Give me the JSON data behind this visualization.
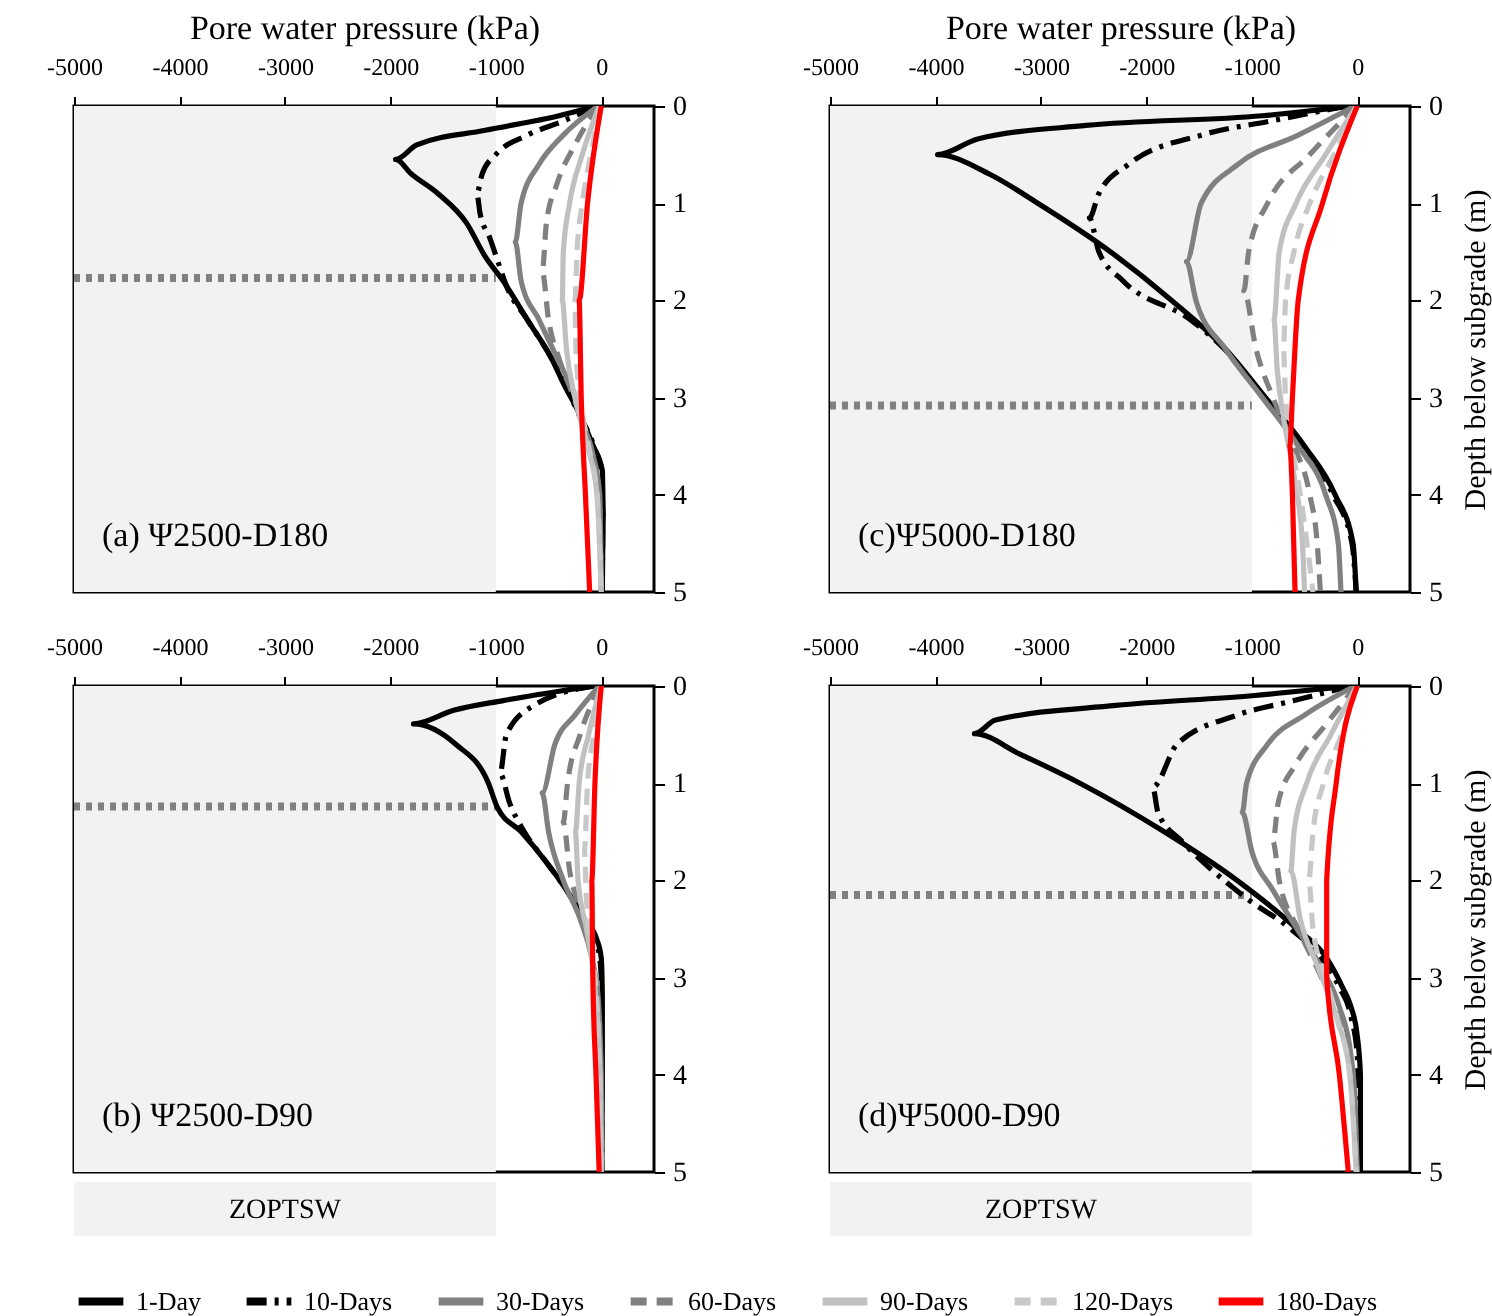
{
  "chart_data": [
    {
      "type": "line",
      "xlabel": "Pore water pressure (kPa)",
      "xlim": [
        -5000,
        500
      ],
      "xticks": [
        -5000,
        -4000,
        -3000,
        -2000,
        -1000,
        0
      ],
      "ylim": [
        5,
        0
      ],
      "yticks": [
        0,
        1,
        2,
        3,
        4,
        5
      ],
      "legend": "bottom",
      "annotations": [
        "(a) Ψ2500-D180"
      ],
      "bands": [
        {
          "axis": "x",
          "from": -5000,
          "to": -1000,
          "label": null,
          "color": "#f2f2f2"
        }
      ],
      "ref_lines": [
        {
          "axis": "y",
          "value": 1.77,
          "label": null,
          "color": "#808080",
          "line_style": "dotted"
        }
      ],
      "series": [
        {
          "name": "1-Day",
          "color": "#000000",
          "line_style": "solid",
          "x": [
            -50,
            -400,
            -1100,
            -1750,
            -1950,
            -1800,
            -1550,
            -1280,
            -1100,
            -930,
            -700,
            -470,
            -360,
            -215,
            -75,
            10,
            20,
            10
          ],
          "values": [
            0,
            0.1,
            0.25,
            0.4,
            0.55,
            0.7,
            0.9,
            1.2,
            1.55,
            1.8,
            2.2,
            2.6,
            2.85,
            3.15,
            3.5,
            3.75,
            4.2,
            5
          ]
        },
        {
          "name": "10-Days",
          "color": "#000000",
          "line_style": "dashdot",
          "x": [
            -60,
            -350,
            -700,
            -1000,
            -1130,
            -1180,
            -1150,
            -1060,
            -980,
            -900,
            -700,
            -470,
            -330,
            -200,
            -70,
            0,
            15,
            10
          ],
          "values": [
            0,
            0.15,
            0.3,
            0.5,
            0.7,
            0.9,
            1.1,
            1.35,
            1.6,
            1.85,
            2.2,
            2.6,
            2.9,
            3.2,
            3.5,
            3.8,
            4.3,
            5
          ]
        },
        {
          "name": "30-Days",
          "color": "#808080",
          "line_style": "solid",
          "x": [
            -30,
            -360,
            -590,
            -760,
            -815,
            -760,
            -590,
            -415,
            -245,
            -160,
            -75,
            -15,
            0
          ],
          "values": [
            0,
            0.3,
            0.6,
            1.0,
            1.4,
            1.8,
            2.2,
            2.6,
            3.0,
            3.3,
            3.6,
            4.0,
            5
          ]
        },
        {
          "name": "60-Days",
          "color": "#808080",
          "line_style": "dashed",
          "x": [
            -30,
            -250,
            -420,
            -520,
            -560,
            -500,
            -400,
            -260,
            -140,
            -50,
            -10,
            0
          ],
          "values": [
            0,
            0.4,
            0.8,
            1.2,
            1.7,
            2.2,
            2.6,
            3.0,
            3.4,
            3.8,
            4.3,
            5
          ]
        },
        {
          "name": "90-Days",
          "color": "#c0c0c0",
          "line_style": "solid",
          "x": [
            -20,
            -180,
            -300,
            -360,
            -370,
            -330,
            -250,
            -130,
            -40,
            0
          ],
          "values": [
            0,
            0.5,
            1,
            1.5,
            2,
            2.5,
            3,
            3.5,
            4,
            5
          ]
        },
        {
          "name": "120-Days",
          "color": "#c8c8c8",
          "line_style": "dashed",
          "x": [
            -10,
            -100,
            -180,
            -230,
            -250,
            -240,
            -200,
            -120,
            -40,
            0
          ],
          "values": [
            0,
            0.5,
            1,
            1.5,
            2,
            2.5,
            3,
            3.5,
            4,
            5
          ]
        },
        {
          "name": "180-Days",
          "color": "#ff0000",
          "line_style": "solid",
          "x": [
            0,
            -130,
            -210,
            -190,
            -150,
            -110
          ],
          "values": [
            0,
            1,
            2,
            3,
            4,
            5
          ]
        }
      ]
    },
    {
      "type": "line",
      "xlabel": "Pore water pressure (kPa)",
      "ylabel": "Depth below subgrade (m)",
      "xlim": [
        -5000,
        500
      ],
      "xticks": [
        -5000,
        -4000,
        -3000,
        -2000,
        -1000,
        0
      ],
      "ylim": [
        5,
        0
      ],
      "yticks": [
        0,
        1,
        2,
        3,
        4,
        5
      ],
      "legend": "bottom",
      "annotations": [
        "(c)Ψ5000-D180"
      ],
      "bands": [
        {
          "axis": "x",
          "from": -5000,
          "to": -1000,
          "label": null,
          "color": "#f2f2f2"
        }
      ],
      "ref_lines": [
        {
          "axis": "y",
          "value": 3.08,
          "label": null,
          "color": "#808080",
          "line_style": "dotted"
        }
      ],
      "series": [
        {
          "name": "1-Day",
          "color": "#000000",
          "line_style": "solid",
          "x": [
            -40,
            -900,
            -2570,
            -3600,
            -3980,
            -3490,
            -3030,
            -2340,
            -1760,
            -1250,
            -870,
            -500,
            -210,
            -40,
            -10
          ],
          "values": [
            0,
            0.1,
            0.2,
            0.34,
            0.5,
            0.7,
            1.0,
            1.5,
            2.0,
            2.5,
            3.0,
            3.5,
            4.0,
            4.5,
            5
          ]
        },
        {
          "name": "10-Days",
          "color": "#000000",
          "line_style": "dashdot",
          "x": [
            -100,
            -800,
            -1480,
            -2170,
            -2450,
            -2540,
            -2450,
            -2220,
            -1580,
            -1260,
            -880,
            -520,
            -230,
            -50,
            -10
          ],
          "values": [
            0,
            0.15,
            0.3,
            0.6,
            0.9,
            1.15,
            1.5,
            1.8,
            2.2,
            2.5,
            3.0,
            3.5,
            4.0,
            4.5,
            5
          ]
        },
        {
          "name": "30-Days",
          "color": "#808080",
          "line_style": "solid",
          "x": [
            -20,
            -560,
            -1130,
            -1480,
            -1620,
            -1530,
            -1250,
            -900,
            -560,
            -300,
            -180,
            -155
          ],
          "values": [
            0,
            0.3,
            0.6,
            1.0,
            1.6,
            2.0,
            2.5,
            3.0,
            3.5,
            4.0,
            4.5,
            5
          ]
        },
        {
          "name": "60-Days",
          "color": "#808080",
          "line_style": "dashed",
          "x": [
            -10,
            -450,
            -850,
            -1030,
            -1075,
            -960,
            -800,
            -600,
            -450,
            -380,
            -350
          ],
          "values": [
            0,
            0.5,
            1,
            1.5,
            1.9,
            2.5,
            3,
            3.5,
            4,
            4.5,
            5
          ]
        },
        {
          "name": "90-Days",
          "color": "#c0c0c0",
          "line_style": "solid",
          "x": [
            -5,
            -300,
            -580,
            -740,
            -790,
            -760,
            -700,
            -600,
            -520,
            -500
          ],
          "values": [
            0,
            0.5,
            1,
            1.5,
            2.2,
            2.7,
            3.2,
            3.8,
            4.5,
            5
          ]
        },
        {
          "name": "120-Days",
          "color": "#c8c8c8",
          "line_style": "dashed",
          "x": [
            0,
            -220,
            -450,
            -600,
            -680,
            -700,
            -680,
            -620,
            -540,
            -420
          ],
          "values": [
            0,
            0.5,
            1,
            1.5,
            2,
            2.5,
            3,
            3.5,
            4,
            5
          ]
        },
        {
          "name": "180-Days",
          "color": "#ff0000",
          "line_style": "solid",
          "x": [
            0,
            -330,
            -560,
            -615,
            -640,
            -615,
            -590
          ],
          "values": [
            0,
            1,
            2,
            3,
            3.5,
            4,
            5
          ]
        }
      ]
    },
    {
      "type": "line",
      "xlim": [
        -5000,
        500
      ],
      "xticks": [
        -5000,
        -4000,
        -3000,
        -2000,
        -1000,
        0
      ],
      "ylim": [
        5,
        0
      ],
      "yticks": [
        0,
        1,
        2,
        3,
        4,
        5
      ],
      "legend": "bottom",
      "annotations": [
        "(b) Ψ2500-D90"
      ],
      "bands": [
        {
          "axis": "x",
          "from": -5000,
          "to": -1000,
          "label": "ZOPTSW",
          "color": "#f2f2f2"
        }
      ],
      "ref_lines": [
        {
          "axis": "y",
          "value": 1.24,
          "label": null,
          "color": "#808080",
          "line_style": "dotted"
        }
      ],
      "series": [
        {
          "name": "1-Day",
          "color": "#000000",
          "line_style": "solid",
          "x": [
            -70,
            -930,
            -1400,
            -1780,
            -1380,
            -1070,
            -985,
            -760,
            -530,
            -330,
            -160,
            -45,
            0,
            10,
            10,
            5
          ],
          "values": [
            0,
            0.15,
            0.25,
            0.39,
            0.6,
            1.0,
            1.25,
            1.5,
            1.8,
            2.1,
            2.4,
            2.6,
            2.8,
            3.2,
            4,
            5
          ]
        },
        {
          "name": "10-Days",
          "color": "#000000",
          "line_style": "dashdot",
          "x": [
            -60,
            -640,
            -900,
            -960,
            -870,
            -730,
            -530,
            -330,
            -160,
            -30,
            0,
            5
          ],
          "values": [
            0,
            0.2,
            0.5,
            0.9,
            1.2,
            1.5,
            1.8,
            2.1,
            2.4,
            2.7,
            3,
            5
          ]
        },
        {
          "name": "30-Days",
          "color": "#808080",
          "line_style": "solid",
          "x": [
            -20,
            -250,
            -440,
            -560,
            -500,
            -360,
            -200,
            -90,
            -30,
            0,
            5
          ],
          "values": [
            0,
            0.3,
            0.6,
            1.1,
            1.5,
            2.0,
            2.4,
            2.8,
            3.2,
            4,
            5
          ]
        },
        {
          "name": "60-Days",
          "color": "#808080",
          "line_style": "dashed",
          "x": [
            -10,
            -200,
            -320,
            -360,
            -300,
            -200,
            -90,
            -20,
            0
          ],
          "values": [
            0,
            0.5,
            1,
            1.4,
            1.9,
            2.3,
            2.8,
            3.5,
            5
          ]
        },
        {
          "name": "90-Days",
          "color": "#c0c0c0",
          "line_style": "solid",
          "x": [
            -5,
            -120,
            -210,
            -245,
            -220,
            -140,
            -70,
            -10,
            0
          ],
          "values": [
            0,
            0.5,
            1,
            1.5,
            2,
            2.5,
            3,
            4,
            5
          ]
        },
        {
          "name": "120-Days",
          "color": "#c8c8c8",
          "line_style": "dashed",
          "x": [
            0,
            -70,
            -130,
            -160,
            -140,
            -90,
            -30,
            0
          ],
          "values": [
            0,
            0.5,
            1,
            1.7,
            2.2,
            2.7,
            3.5,
            5
          ]
        },
        {
          "name": "180-Days",
          "color": "#ff0000",
          "line_style": "solid",
          "x": [
            0,
            -60,
            -90,
            -80,
            -50,
            -20
          ],
          "values": [
            0,
            1,
            2,
            3,
            4,
            5
          ]
        }
      ]
    },
    {
      "type": "line",
      "ylabel": "Depth below subgrade (m)",
      "xlim": [
        -5000,
        500
      ],
      "xticks": [
        -5000,
        -4000,
        -3000,
        -2000,
        -1000,
        0
      ],
      "ylim": [
        5,
        0
      ],
      "yticks": [
        0,
        1,
        2,
        3,
        4,
        5
      ],
      "legend": "bottom",
      "annotations": [
        "(d)Ψ5000-D90"
      ],
      "bands": [
        {
          "axis": "x",
          "from": -5000,
          "to": -1000,
          "label": "ZOPTSW",
          "color": "#f2f2f2"
        }
      ],
      "ref_lines": [
        {
          "axis": "y",
          "value": 2.15,
          "label": null,
          "color": "#808080",
          "line_style": "dotted"
        }
      ],
      "series": [
        {
          "name": "1-Day",
          "color": "#000000",
          "line_style": "solid",
          "x": [
            -60,
            -1000,
            -2290,
            -3430,
            -3630,
            -3200,
            -2630,
            -1830,
            -1140,
            -570,
            -290,
            -140,
            -60,
            0,
            30,
            30
          ],
          "values": [
            0,
            0.1,
            0.2,
            0.35,
            0.49,
            0.7,
            1.0,
            1.5,
            2.0,
            2.5,
            2.8,
            3.1,
            3.3,
            3.6,
            4,
            5
          ]
        },
        {
          "name": "10-Days",
          "color": "#000000",
          "line_style": "dashdot",
          "x": [
            -60,
            -600,
            -1140,
            -1710,
            -1940,
            -1890,
            -1660,
            -1370,
            -1030,
            -630,
            -340,
            -170,
            -60,
            0,
            20
          ],
          "values": [
            0,
            0.15,
            0.3,
            0.6,
            1.04,
            1.3,
            1.6,
            1.9,
            2.2,
            2.5,
            2.8,
            3.1,
            3.4,
            3.8,
            5
          ]
        },
        {
          "name": "30-Days",
          "color": "#808080",
          "line_style": "solid",
          "x": [
            -20,
            -500,
            -850,
            -1050,
            -1090,
            -1000,
            -800,
            -570,
            -340,
            -170,
            -60,
            -20,
            0
          ],
          "values": [
            0,
            0.3,
            0.6,
            1.0,
            1.3,
            1.7,
            2.1,
            2.5,
            2.9,
            3.3,
            3.8,
            4.3,
            5
          ]
        },
        {
          "name": "60-Days",
          "color": "#808080",
          "line_style": "dashed",
          "x": [
            -10,
            -300,
            -580,
            -750,
            -800,
            -740,
            -560,
            -340,
            -160,
            -60,
            0
          ],
          "values": [
            0,
            0.4,
            0.8,
            1.2,
            1.6,
            2.0,
            2.5,
            3.0,
            3.5,
            4.0,
            5
          ]
        },
        {
          "name": "90-Days",
          "color": "#c0c0c0",
          "line_style": "solid",
          "x": [
            -5,
            -250,
            -480,
            -600,
            -630,
            -540,
            -370,
            -200,
            -70,
            -10
          ],
          "values": [
            0,
            0.5,
            1,
            1.5,
            1.9,
            2.4,
            2.9,
            3.4,
            4,
            5
          ]
        },
        {
          "name": "120-Days",
          "color": "#c8c8c8",
          "line_style": "dashed",
          "x": [
            0,
            -150,
            -320,
            -420,
            -460,
            -420,
            -300,
            -170,
            -70,
            -10
          ],
          "values": [
            0,
            0.5,
            1,
            1.5,
            2,
            2.5,
            3,
            3.5,
            4,
            5
          ]
        },
        {
          "name": "180-Days",
          "color": "#ff0000",
          "line_style": "solid",
          "x": [
            0,
            -200,
            -290,
            -290,
            -170,
            -85
          ],
          "values": [
            0,
            1,
            2,
            3,
            4,
            5
          ]
        }
      ]
    }
  ]
}
